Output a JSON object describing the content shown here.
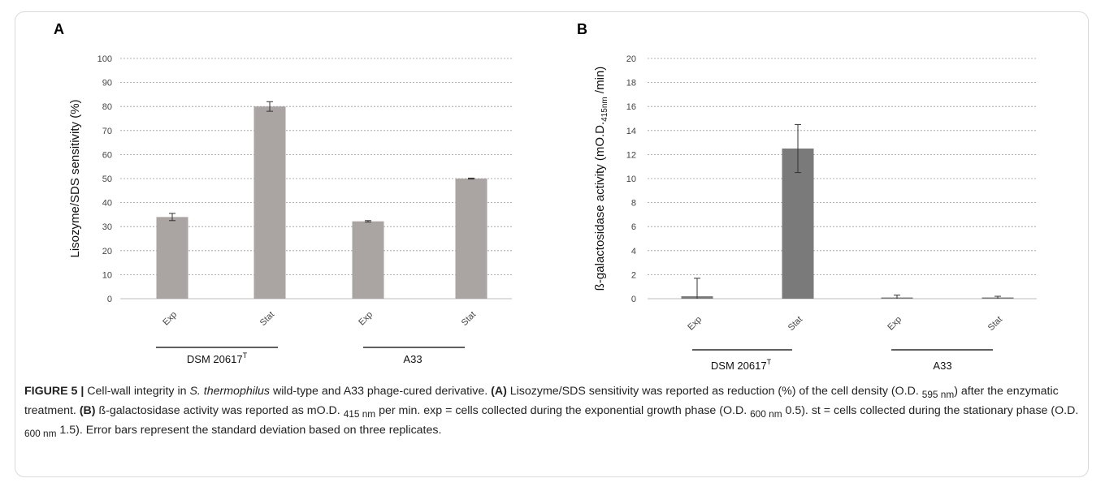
{
  "charts": [
    {
      "panel": "A",
      "ylabel": "Lisozyme/SDS sensitivity (%)",
      "ylim": [
        0,
        100
      ],
      "yticks": [
        "0",
        "10",
        "20",
        "30",
        "40",
        "50",
        "60",
        "70",
        "80",
        "90",
        "100"
      ],
      "groups": [
        {
          "label": "DSM 20617",
          "sup": "T"
        },
        {
          "label": "A33",
          "sup": ""
        }
      ]
    },
    {
      "panel": "B",
      "ylabel": "ß-galactosidase activity (mO.D.",
      "ylabel_sub": "415nm",
      "ylabel_end": " /min)",
      "ylim": [
        0,
        20
      ],
      "yticks": [
        "0",
        "2",
        "4",
        "6",
        "8",
        "10",
        "12",
        "14",
        "16",
        "18",
        "20"
      ],
      "groups": [
        {
          "label": "DSM 20617",
          "sup": "T"
        },
        {
          "label": "A33",
          "sup": ""
        }
      ]
    }
  ],
  "chart_data": [
    {
      "type": "bar",
      "categories": [
        "Exp",
        "Stat",
        "Exp",
        "Stat"
      ],
      "values": [
        34,
        80,
        32.2,
        50
      ],
      "errors": [
        1.5,
        2,
        0.3,
        0.2
      ],
      "ylabel": "Lisozyme/SDS sensitivity (%)",
      "ylim": [
        0,
        100
      ],
      "grid": true,
      "color": "#aaa5a3"
    },
    {
      "type": "bar",
      "categories": [
        "Exp",
        "Stat",
        "Exp",
        "Stat"
      ],
      "values": [
        0.2,
        12.5,
        0.1,
        0.1
      ],
      "errors": [
        1.5,
        2,
        0.2,
        0.1
      ],
      "ylabel": "ß-galactosidase activity (mO.D.415nm /min)",
      "ylim": [
        0,
        20
      ],
      "grid": true,
      "color": "#7a7a7a"
    }
  ],
  "caption": {
    "label": "FIGURE 5 |",
    "t1": " Cell-wall integrity in ",
    "species": "S. thermophilus",
    "t2": " wild-type and A33 phage-cured derivative. ",
    "a": "(A)",
    "t3": " Lisozyme/SDS sensitivity was reported as reduction (%) of the cell density (O.D. ",
    "s1": "595 nm",
    "t4": ") after the enzymatic treatment. ",
    "b": "(B)",
    "t5": " ß-galactosidase activity was reported as mO.D. ",
    "s2": "415 nm",
    "t6": " per min. exp = cells collected during the exponential growth phase (O.D. ",
    "s3": "600 nm",
    "t7": " 0.5). st = cells collected during the stationary phase (O.D. ",
    "s4": "600 nm",
    "t8": " 1.5). Error bars represent the standard deviation based on three replicates."
  }
}
